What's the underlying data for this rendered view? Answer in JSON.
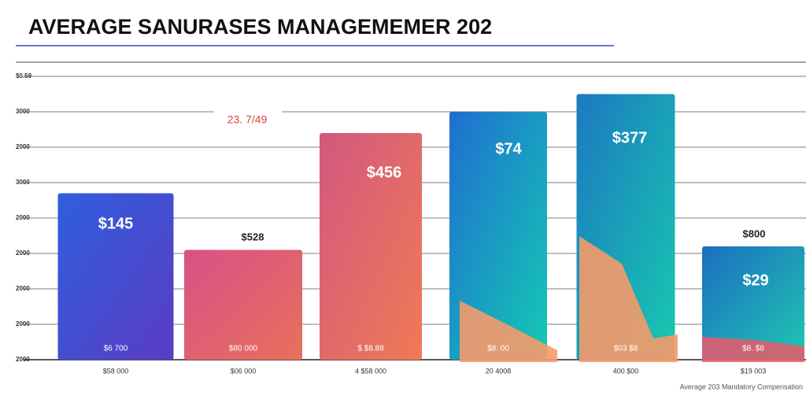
{
  "chart_data": {
    "type": "bar",
    "title": "AVERAGE SANURASES MANAGEMEMER 202",
    "categories": [
      "$58 000",
      "$06 000",
      "4 $58 000",
      "20 4008",
      "400 $00",
      "$19 003"
    ],
    "values": [
      4.7,
      3.1,
      6.4,
      7.0,
      7.5,
      3.2
    ],
    "colors": [
      "#2f5fdc",
      "#d95187",
      "#d2587f",
      "#1f6fd0",
      "#1c79c0",
      "#1b6fbf"
    ],
    "colors2": [
      "#5a3cc4",
      "#e8705a",
      "#f07a55",
      "#14c9b4",
      "#17c9b0",
      "#1fc6b3"
    ],
    "ylim": [
      0,
      8.2
    ],
    "yticks": [
      {
        "value": 0,
        "label": "2000"
      },
      {
        "value": 1,
        "label": "2000"
      },
      {
        "value": 2,
        "label": "2000"
      },
      {
        "value": 3,
        "label": "2000"
      },
      {
        "value": 4,
        "label": "2000"
      },
      {
        "value": 5,
        "label": "3000"
      },
      {
        "value": 6,
        "label": "2000"
      },
      {
        "value": 7,
        "label": "3000"
      },
      {
        "value": 8,
        "label": "$0.59"
      }
    ],
    "grid": true,
    "annotations": [
      "$145",
      "$528",
      "$456",
      "$74",
      "$377",
      "$29",
      "$800",
      "23. 7/49"
    ],
    "inner_labels": [
      "$6 700",
      "$80 000",
      "$ $8.88",
      "$8. 00",
      "$03 $8",
      "$8. $8"
    ],
    "footer": "Average 203 Mandatory Compensation"
  }
}
